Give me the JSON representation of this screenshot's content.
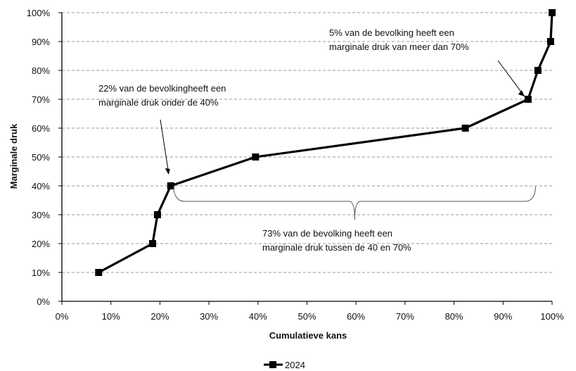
{
  "chart_data": {
    "type": "line",
    "title": "",
    "xlabel": "Cumulatieve kans",
    "ylabel": "Marginale druk",
    "xlim": [
      0,
      100
    ],
    "ylim": [
      0,
      100
    ],
    "x_ticks": [
      "0%",
      "10%",
      "20%",
      "30%",
      "40%",
      "50%",
      "60%",
      "70%",
      "80%",
      "90%",
      "100%"
    ],
    "y_ticks": [
      "0%",
      "10%",
      "20%",
      "30%",
      "40%",
      "50%",
      "60%",
      "70%",
      "80%",
      "90%",
      "100%"
    ],
    "grid": "horizontal dashed",
    "legend_position": "bottom-center",
    "series": [
      {
        "name": "2024",
        "color": "#000000",
        "marker": "square",
        "x": [
          7.5,
          18.5,
          19.5,
          22.2,
          39.5,
          82.3,
          95.1,
          97.1,
          99.7,
          100.0
        ],
        "y": [
          10,
          20,
          30,
          40,
          50,
          60,
          70,
          80,
          90,
          100
        ]
      }
    ],
    "annotations": [
      {
        "lines": [
          "22% van de bevolkingheeft een",
          "marginale druk onder de 40%"
        ],
        "target": [
          22.2,
          40
        ]
      },
      {
        "lines": [
          "5% van de bevolking heeft een",
          "marginale druk van meer dan 70%"
        ],
        "target": [
          95.1,
          70
        ]
      },
      {
        "lines": [
          "73% van de bevolking heeft een",
          "marginale druk tussen de 40 en 70%"
        ],
        "brace_from": 23,
        "brace_to": 96.5
      }
    ]
  }
}
